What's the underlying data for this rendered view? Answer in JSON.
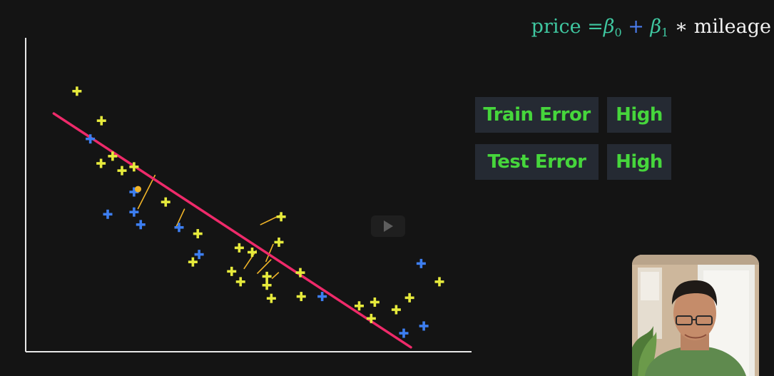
{
  "formula": {
    "lhs": "price",
    "equals": "=",
    "beta0": "β",
    "beta0_sub": "0",
    "plus": "+",
    "beta1": "β",
    "beta1_sub": "1",
    "times": "∗",
    "feature": "mileage"
  },
  "errors": [
    {
      "label": "Train Error",
      "value": "High"
    },
    {
      "label": "Test Error",
      "value": "High"
    }
  ],
  "colors": {
    "background": "#141414",
    "train_points": "#e6ea3c",
    "test_points": "#3d7ef0",
    "fit_line": "#ee2a6a",
    "annotation": "#f0b428",
    "error_text": "#46d63c",
    "formula_green": "#3fc7a0",
    "formula_blue": "#4b7df0"
  },
  "icons": {
    "play": "play-icon",
    "webcam": "presenter-webcam"
  },
  "chart_data": {
    "type": "scatter",
    "title": "",
    "xlabel": "",
    "ylabel": "",
    "xlim": [
      0,
      100
    ],
    "ylim": [
      0,
      100
    ],
    "grid": false,
    "series": [
      {
        "marker": "plus",
        "color": "#e6ea3c",
        "points": [
          [
            11.5,
            83.0
          ],
          [
            17.0,
            73.6
          ],
          [
            19.5,
            62.3
          ],
          [
            16.9,
            60.0
          ],
          [
            21.6,
            57.7
          ],
          [
            24.3,
            58.9
          ],
          [
            31.4,
            47.7
          ],
          [
            38.6,
            37.6
          ],
          [
            37.5,
            28.6
          ],
          [
            47.9,
            33.1
          ],
          [
            57.3,
            43.0
          ],
          [
            56.8,
            34.9
          ],
          [
            50.8,
            31.7
          ],
          [
            46.2,
            25.6
          ],
          [
            48.2,
            22.3
          ],
          [
            54.1,
            24.0
          ],
          [
            61.6,
            25.2
          ],
          [
            54.1,
            21.2
          ],
          [
            55.1,
            17.0
          ],
          [
            61.8,
            17.6
          ],
          [
            74.8,
            14.6
          ],
          [
            78.3,
            15.8
          ],
          [
            86.1,
            17.2
          ],
          [
            92.8,
            22.3
          ],
          [
            83.1,
            13.4
          ],
          [
            77.5,
            10.6
          ]
        ]
      },
      {
        "marker": "plus",
        "color": "#3d7ef0",
        "points": [
          [
            14.5,
            67.8
          ],
          [
            24.3,
            50.9
          ],
          [
            18.4,
            43.8
          ],
          [
            24.3,
            44.5
          ],
          [
            25.8,
            40.5
          ],
          [
            34.4,
            39.6
          ],
          [
            38.9,
            31.0
          ],
          [
            66.5,
            17.6
          ],
          [
            88.7,
            28.1
          ],
          [
            89.3,
            8.2
          ],
          [
            84.8,
            5.9
          ]
        ]
      }
    ],
    "fit_line": {
      "color": "#ee2a6a",
      "from": [
        6.3,
        75.9
      ],
      "to": [
        86.4,
        1.4
      ]
    },
    "annotations": [
      {
        "kind": "residual-stroke",
        "color": "#f0b428",
        "from": [
          29.0,
          56.2
        ],
        "to": [
          25.2,
          45.6
        ]
      },
      {
        "kind": "residual-stroke",
        "color": "#f0b428",
        "from": [
          35.6,
          45.4
        ],
        "to": [
          33.7,
          39.6
        ]
      },
      {
        "kind": "residual-stroke",
        "color": "#f0b428",
        "from": [
          52.7,
          40.5
        ],
        "to": [
          57.1,
          43.5
        ]
      },
      {
        "kind": "residual-stroke",
        "color": "#f0b428",
        "from": [
          55.5,
          34.2
        ],
        "to": [
          53.9,
          28.8
        ]
      },
      {
        "kind": "residual-stroke",
        "color": "#f0b428",
        "from": [
          51.7,
          32.2
        ],
        "to": [
          49.0,
          26.5
        ]
      },
      {
        "kind": "residual-stroke",
        "color": "#f0b428",
        "from": [
          55.0,
          29.3
        ],
        "to": [
          52.0,
          25.0
        ]
      },
      {
        "kind": "residual-stroke",
        "color": "#f0b428",
        "from": [
          56.7,
          25.2
        ],
        "to": [
          55.3,
          23.4
        ]
      }
    ],
    "highlight": {
      "color": "#f0b428",
      "point": [
        25.2,
        51.8
      ]
    }
  }
}
